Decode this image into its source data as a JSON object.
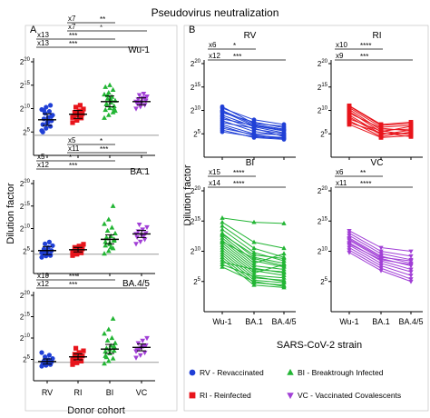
{
  "figure_title": "Pseudovirus neutralization",
  "panel_a": {
    "letter": "A",
    "ylabel": "Dilution factor",
    "xlabel": "Donor cohort"
  },
  "panel_b": {
    "letter": "B",
    "ylabel": "Dilution factor",
    "xlabel": "SARS-CoV-2 strain"
  },
  "colors": {
    "RV": "#1f3fd6",
    "RI": "#e8141b",
    "BI": "#22b534",
    "VC": "#a13fd6",
    "threshold": "#9a9a9a"
  },
  "legend": [
    {
      "key": "RV",
      "marker": "circle",
      "text": "RV - Revaccinated"
    },
    {
      "key": "BI",
      "marker": "triangle-up",
      "text": "BI - Breaktrough Infected"
    },
    {
      "key": "RI",
      "marker": "square",
      "text": "RI - Reinfected"
    },
    {
      "key": "VC",
      "marker": "triangle-down",
      "text": "VC - Vaccinated Covalescents"
    }
  ],
  "chart_data": [
    {
      "type": "scatter",
      "panel": "A",
      "title": "Wu-1",
      "xlabel": "",
      "ylabel": "Dilution factor",
      "categories": [
        "RV",
        "RI",
        "BI",
        "VC"
      ],
      "y_scale": "log2",
      "ylim_log2": [
        0,
        20
      ],
      "y_ticks": [
        "2^5",
        "2^10",
        "2^15",
        "2^20"
      ],
      "threshold_log2": 4.3,
      "series": [
        {
          "name": "RV",
          "values_log2": [
            5.3,
            5.8,
            6.2,
            6.6,
            7.0,
            7.4,
            7.8,
            8.1,
            8.6,
            9.0,
            9.4,
            9.8,
            10.3,
            10.7,
            5.0,
            6.9,
            8.4,
            9.6,
            7.2
          ]
        },
        {
          "name": "RI",
          "values_log2": [
            7.0,
            7.5,
            8.0,
            8.3,
            8.6,
            8.9,
            9.2,
            9.5,
            9.9,
            10.3,
            10.7,
            8.1,
            8.8,
            9.1
          ]
        },
        {
          "name": "BI",
          "values_log2": [
            8.0,
            8.6,
            9.2,
            9.7,
            10.1,
            10.5,
            10.9,
            11.3,
            11.7,
            12.1,
            12.5,
            13.0,
            13.4,
            14.0,
            14.6,
            15.0,
            10.0,
            11.0,
            12.0,
            9.5,
            12.8
          ]
        },
        {
          "name": "VC",
          "values_log2": [
            10.0,
            10.4,
            10.8,
            11.1,
            11.4,
            11.7,
            12.0,
            12.3,
            12.6,
            12.9,
            13.2,
            11.5,
            10.9,
            12.2
          ]
        }
      ],
      "summary_log2": [
        {
          "name": "RV",
          "center": 7.6,
          "low": 6.4,
          "high": 8.9
        },
        {
          "name": "RI",
          "center": 8.8,
          "low": 7.9,
          "high": 9.6
        },
        {
          "name": "BI",
          "center": 11.5,
          "low": 10.4,
          "high": 12.7
        },
        {
          "name": "VC",
          "center": 11.5,
          "low": 10.8,
          "high": 12.3
        }
      ],
      "annotations": [
        {
          "fold": "x7",
          "stars": "**",
          "from": "RI",
          "to": "BI"
        },
        {
          "fold": "x7",
          "stars": "*",
          "from": "RI",
          "to": "VC"
        },
        {
          "fold": "x13",
          "stars": "***",
          "from": "RV",
          "to": "BI"
        },
        {
          "fold": "x13",
          "stars": "***",
          "from": "RV",
          "to": "VC"
        }
      ]
    },
    {
      "type": "scatter",
      "panel": "A",
      "title": "BA.1",
      "xlabel": "",
      "ylabel": "Dilution factor",
      "categories": [
        "RV",
        "RI",
        "BI",
        "VC"
      ],
      "y_scale": "log2",
      "ylim_log2": [
        0,
        20
      ],
      "y_ticks": [
        "2^5",
        "2^10",
        "2^15",
        "2^20"
      ],
      "threshold_log2": 4.3,
      "series": [
        {
          "name": "RV",
          "values_log2": [
            3.6,
            3.9,
            4.2,
            4.5,
            4.8,
            5.1,
            5.4,
            5.8,
            6.2,
            6.6,
            7.0,
            4.6,
            5.0,
            4.0
          ]
        },
        {
          "name": "RI",
          "values_log2": [
            4.0,
            4.3,
            4.6,
            4.9,
            5.2,
            5.5,
            5.8,
            6.1,
            6.5,
            5.0,
            5.3,
            4.8
          ]
        },
        {
          "name": "BI",
          "values_log2": [
            4.4,
            5.0,
            5.6,
            6.2,
            6.8,
            7.3,
            7.8,
            8.3,
            8.9,
            9.5,
            10.2,
            11.0,
            12.0,
            15.0,
            7.0,
            6.5,
            7.6,
            8.0,
            5.8
          ]
        },
        {
          "name": "VC",
          "values_log2": [
            6.6,
            7.1,
            7.6,
            8.1,
            8.6,
            9.0,
            9.4,
            9.8,
            10.3,
            10.9,
            8.4,
            8.8
          ]
        }
      ],
      "summary_log2": [
        {
          "name": "RV",
          "center": 5.1,
          "low": 4.2,
          "high": 6.0
        },
        {
          "name": "RI",
          "center": 5.3,
          "low": 4.8,
          "high": 5.8
        },
        {
          "name": "BI",
          "center": 7.6,
          "low": 6.6,
          "high": 8.6
        },
        {
          "name": "VC",
          "center": 8.8,
          "low": 8.0,
          "high": 9.6
        }
      ],
      "annotations": [
        {
          "fold": "x5",
          "stars": "*",
          "from": "RI",
          "to": "BI"
        },
        {
          "fold": "x11",
          "stars": "***",
          "from": "RI",
          "to": "VC"
        },
        {
          "fold": "x5",
          "stars": "*",
          "from": "RV",
          "to": "BI"
        },
        {
          "fold": "x12",
          "stars": "***",
          "from": "RV",
          "to": "VC"
        }
      ]
    },
    {
      "type": "scatter",
      "panel": "A",
      "title": "BA.4/5",
      "xlabel": "Donor cohort",
      "ylabel": "Dilution factor",
      "categories": [
        "RV",
        "RI",
        "BI",
        "VC"
      ],
      "y_scale": "log2",
      "ylim_log2": [
        0,
        20
      ],
      "y_ticks": [
        "2^5",
        "2^10",
        "2^15",
        "2^20"
      ],
      "threshold_log2": 4.3,
      "series": [
        {
          "name": "RV",
          "values_log2": [
            3.4,
            3.6,
            3.8,
            4.0,
            4.2,
            4.4,
            4.6,
            4.9,
            5.2,
            5.6,
            6.0,
            6.6,
            3.9,
            4.3
          ]
        },
        {
          "name": "RI",
          "values_log2": [
            3.8,
            4.2,
            4.6,
            5.0,
            5.4,
            5.8,
            6.2,
            6.6,
            7.0,
            7.6,
            5.5,
            4.9
          ]
        },
        {
          "name": "BI",
          "values_log2": [
            4.0,
            4.6,
            5.2,
            5.8,
            6.4,
            7.0,
            7.6,
            8.2,
            8.8,
            9.4,
            10.0,
            11.0,
            12.0,
            14.5,
            6.8,
            7.3,
            8.0,
            5.5
          ]
        },
        {
          "name": "VC",
          "values_log2": [
            5.4,
            6.0,
            6.6,
            7.2,
            7.8,
            8.3,
            8.8,
            9.4,
            10.0,
            7.5,
            8.1,
            6.9
          ]
        }
      ],
      "summary_log2": [
        {
          "name": "RV",
          "center": 4.5,
          "low": 3.9,
          "high": 5.1
        },
        {
          "name": "RI",
          "center": 5.6,
          "low": 4.9,
          "high": 6.3
        },
        {
          "name": "BI",
          "center": 7.4,
          "low": 6.4,
          "high": 8.5
        },
        {
          "name": "VC",
          "center": 7.8,
          "low": 7.0,
          "high": 8.6
        }
      ],
      "annotations": [
        {
          "fold": "x10",
          "stars": "***",
          "from": "RV",
          "to": "BI"
        },
        {
          "fold": "x12",
          "stars": "***",
          "from": "RV",
          "to": "VC"
        }
      ]
    },
    {
      "type": "line",
      "panel": "B",
      "title": "RV",
      "color_key": "RV",
      "categories": [
        "Wu-1",
        "BA.1",
        "BA.4/5"
      ],
      "y_scale": "log2",
      "ylim_log2": [
        0,
        20
      ],
      "y_ticks": [
        "2^5",
        "2^10",
        "2^15",
        "2^20"
      ],
      "marker": "circle",
      "paired": [
        [
          10.5,
          8.0,
          7.0
        ],
        [
          10.0,
          7.0,
          6.0
        ],
        [
          9.5,
          7.5,
          6.3
        ],
        [
          9.0,
          6.5,
          5.2
        ],
        [
          8.6,
          6.0,
          5.0
        ],
        [
          8.2,
          6.8,
          5.8
        ],
        [
          7.8,
          5.5,
          4.6
        ],
        [
          7.4,
          6.2,
          4.4
        ],
        [
          7.0,
          5.0,
          4.8
        ],
        [
          6.6,
          4.6,
          4.2
        ],
        [
          6.2,
          4.8,
          4.0
        ],
        [
          5.8,
          4.2,
          3.8
        ],
        [
          5.4,
          4.4,
          4.0
        ],
        [
          10.8,
          7.2,
          6.6
        ],
        [
          9.8,
          6.7,
          5.6
        ]
      ],
      "annotations": [
        {
          "fold": "x6",
          "stars": "*",
          "from": "Wu-1",
          "to": "BA.1"
        },
        {
          "fold": "x12",
          "stars": "***",
          "from": "Wu-1",
          "to": "BA.4/5"
        }
      ]
    },
    {
      "type": "line",
      "panel": "B",
      "title": "RI",
      "color_key": "RI",
      "categories": [
        "Wu-1",
        "BA.1",
        "BA.4/5"
      ],
      "y_scale": "log2",
      "ylim_log2": [
        0,
        20
      ],
      "y_ticks": [
        "2^5",
        "2^10",
        "2^15",
        "2^20"
      ],
      "marker": "square",
      "paired": [
        [
          11.0,
          7.0,
          7.5
        ],
        [
          10.6,
          6.4,
          6.8
        ],
        [
          10.2,
          5.8,
          6.0
        ],
        [
          9.8,
          5.4,
          6.6
        ],
        [
          9.4,
          6.2,
          5.6
        ],
        [
          9.0,
          5.0,
          5.2
        ],
        [
          8.6,
          4.8,
          5.8
        ],
        [
          8.2,
          5.6,
          4.8
        ],
        [
          7.8,
          4.4,
          5.4
        ],
        [
          7.4,
          5.2,
          4.4
        ],
        [
          7.0,
          4.2,
          4.6
        ],
        [
          10.9,
          6.8,
          7.2
        ]
      ],
      "annotations": [
        {
          "fold": "x10",
          "stars": "****",
          "from": "Wu-1",
          "to": "BA.1"
        },
        {
          "fold": "x9",
          "stars": "***",
          "from": "Wu-1",
          "to": "BA.4/5"
        }
      ]
    },
    {
      "type": "line",
      "panel": "B",
      "title": "BI",
      "color_key": "BI",
      "categories": [
        "Wu-1",
        "BA.1",
        "BA.4/5"
      ],
      "y_scale": "log2",
      "ylim_log2": [
        0,
        20
      ],
      "y_ticks": [
        "2^5",
        "2^10",
        "2^15",
        "2^20"
      ],
      "marker": "triangle-up",
      "paired": [
        [
          15.5,
          14.8,
          14.6
        ],
        [
          14.8,
          11.5,
          10.5
        ],
        [
          14.2,
          10.5,
          9.0
        ],
        [
          13.6,
          9.8,
          8.4
        ],
        [
          13.0,
          9.0,
          8.0
        ],
        [
          12.6,
          8.4,
          7.4
        ],
        [
          12.2,
          8.0,
          9.6
        ],
        [
          11.8,
          7.6,
          7.0
        ],
        [
          11.4,
          7.2,
          6.4
        ],
        [
          11.0,
          6.8,
          6.0
        ],
        [
          10.6,
          6.4,
          7.8
        ],
        [
          10.2,
          6.0,
          5.6
        ],
        [
          9.8,
          5.6,
          5.2
        ],
        [
          9.4,
          5.2,
          4.8
        ],
        [
          9.0,
          4.8,
          4.4
        ],
        [
          8.6,
          4.4,
          4.0
        ],
        [
          8.2,
          7.0,
          6.6
        ],
        [
          7.8,
          5.8,
          5.0
        ],
        [
          7.4,
          5.0,
          4.2
        ],
        [
          12.8,
          9.4,
          8.8
        ],
        [
          11.6,
          8.8,
          7.6
        ]
      ],
      "annotations": [
        {
          "fold": "x15",
          "stars": "****",
          "from": "Wu-1",
          "to": "BA.1"
        },
        {
          "fold": "x14",
          "stars": "****",
          "from": "Wu-1",
          "to": "BA.4/5"
        }
      ]
    },
    {
      "type": "line",
      "panel": "B",
      "title": "VC",
      "color_key": "VC",
      "categories": [
        "Wu-1",
        "BA.1",
        "BA.4/5"
      ],
      "y_scale": "log2",
      "ylim_log2": [
        0,
        20
      ],
      "y_ticks": [
        "2^5",
        "2^10",
        "2^15",
        "2^20"
      ],
      "marker": "triangle-down",
      "paired": [
        [
          13.4,
          10.6,
          10.0
        ],
        [
          13.0,
          10.0,
          9.2
        ],
        [
          12.6,
          9.6,
          8.6
        ],
        [
          12.2,
          9.2,
          8.0
        ],
        [
          11.8,
          8.8,
          7.6
        ],
        [
          11.4,
          8.4,
          7.0
        ],
        [
          11.0,
          8.0,
          6.6
        ],
        [
          10.6,
          7.6,
          6.0
        ],
        [
          10.2,
          7.2,
          5.4
        ],
        [
          9.8,
          6.8,
          5.0
        ],
        [
          12.0,
          9.0,
          8.4
        ],
        [
          11.2,
          8.6,
          7.8
        ]
      ],
      "annotations": [
        {
          "fold": "x6",
          "stars": "**",
          "from": "Wu-1",
          "to": "BA.1"
        },
        {
          "fold": "x11",
          "stars": "****",
          "from": "Wu-1",
          "to": "BA.4/5"
        }
      ]
    }
  ]
}
